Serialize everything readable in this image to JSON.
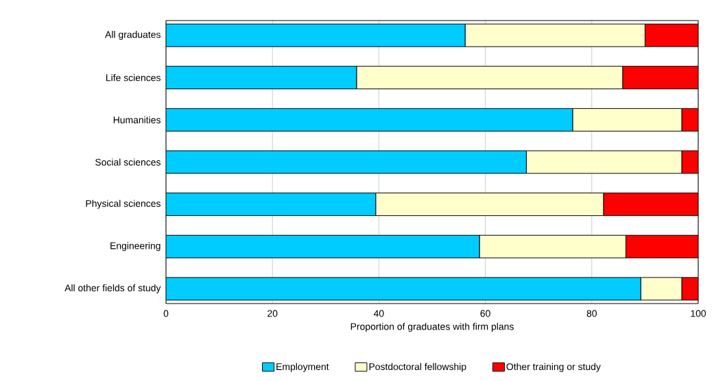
{
  "chart_data": {
    "type": "bar",
    "orientation": "horizontal",
    "stacked": true,
    "categories": [
      "All graduates",
      "Life sciences",
      "Humanities",
      "Social sciences",
      "Physical sciences",
      "Engineering",
      "All other fields of study"
    ],
    "series": [
      {
        "name": "Employment",
        "color": "#00ccff",
        "values": [
          56.2,
          35.8,
          76.4,
          67.7,
          39.4,
          58.9,
          89.2
        ]
      },
      {
        "name": "Postdoctoral fellowship",
        "color": "#ffffcc",
        "values": [
          33.8,
          50.0,
          20.5,
          29.2,
          42.8,
          27.5,
          7.7
        ]
      },
      {
        "name": "Other training or study",
        "color": "#ff0000",
        "values": [
          10.0,
          14.2,
          3.1,
          3.1,
          17.8,
          13.6,
          3.1
        ]
      }
    ],
    "xlabel": "Proportion of graduates with firm plans",
    "xlim": [
      0,
      100
    ],
    "xticks": [
      0,
      20,
      40,
      60,
      80,
      100
    ],
    "grid": "x",
    "legend": "bottom"
  }
}
